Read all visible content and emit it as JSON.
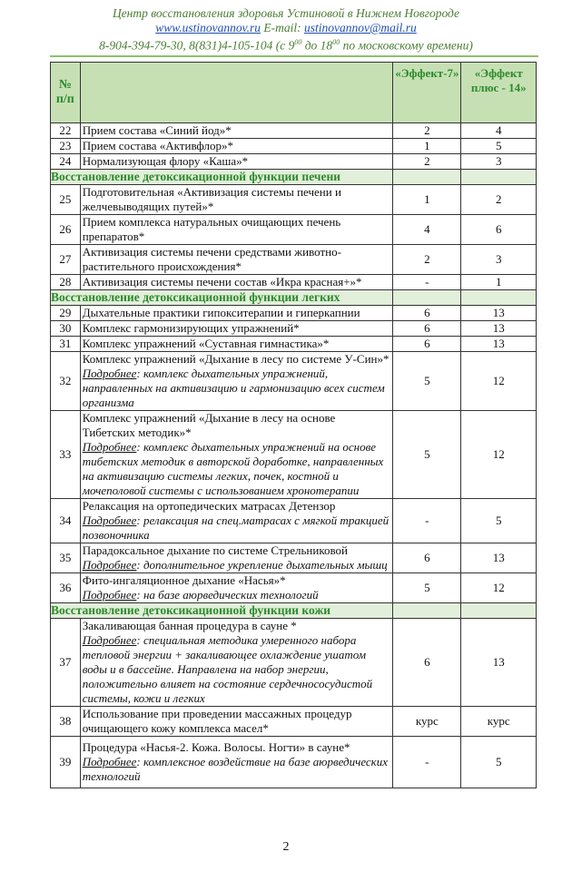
{
  "header": {
    "title": "Центр восстановления здоровья Устиновой в Нижнем Новгороде",
    "website": "www.ustinovannov.ru",
    "email_label": "E-mail:",
    "email": "ustinovannov@mail.ru",
    "phones": "8-904-394-79-30, 8(831)4-105-104 (с 9",
    "hours_from_sup": "00",
    "hours_mid": " до 18",
    "hours_to_sup": "00",
    "hours_end": " по московскому времени)"
  },
  "table": {
    "headers": {
      "num": "№ п/п",
      "desc": "",
      "effect7": "«Эффект-7»",
      "effect14": "«Эффект плюс - 14»"
    },
    "more_label": "Подробнее",
    "rows": [
      {
        "n": "22",
        "t": "Прием состава «Синий йод»*",
        "a": "2",
        "b": "4"
      },
      {
        "n": "23",
        "t": "Прием состава «Активфлор»*",
        "a": "1",
        "b": "5"
      },
      {
        "n": "24",
        "t": "Нормализующая флору «Каша»*",
        "a": "2",
        "b": "3"
      },
      {
        "section": "Восстановление детоксикационной функции печени"
      },
      {
        "n": "25",
        "t": "Подготовительная «Активизация системы печени и желчевыводящих путей»*",
        "a": "1",
        "b": "2"
      },
      {
        "n": "26",
        "t": "Прием комплекса натуральных очищающих  печень препаратов*",
        "a": "4",
        "b": "6"
      },
      {
        "n": "27",
        "t": "Активизация системы печени средствами животно-растительного происхождения*",
        "a": "2",
        "b": "3"
      },
      {
        "n": "28",
        "t": "Активизация системы печени состав «Икра красная+»*",
        "a": "-",
        "b": "1"
      },
      {
        "section": "Восстановление детоксикационной функции легких"
      },
      {
        "n": "29",
        "t": "Дыхательные практики гипокситерапии и гиперкапнии",
        "a": "6",
        "b": "13"
      },
      {
        "n": "30",
        "t": "Комплекс гармонизирующих упражнений*",
        "a": "6",
        "b": "13"
      },
      {
        "n": "31",
        "t": "Комплекс упражнений «Суставная гимнастика»*",
        "a": "6",
        "b": "13"
      },
      {
        "n": "32",
        "t": "Комплекс упражнений «Дыхание в лесу по системе У-Син»*",
        "m": ": комплекс дыхательных упражнений, направленных на активизацию и гармонизацию всех систем организма",
        "a": "5",
        "b": "12"
      },
      {
        "n": "33",
        "t": "Комплекс упражнений «Дыхание в лесу на основе Тибетских методик»*",
        "m": ": комплекс дыхательных упражнений на основе тибетских методик в авторской доработке, направленных на активизацию системы легких, почек, костной и мочеполовой системы с использованием хронотерапии",
        "a": "5",
        "b": "12"
      },
      {
        "n": "34",
        "t": "Релаксация на ортопедических матрасах Детензор",
        "m": ": релаксация на спец.матрасах с мягкой тракцией позвоночника",
        "a": "-",
        "b": "5"
      },
      {
        "n": "35",
        "t": "Парадоксальное дыхание по системе Стрельниковой",
        "m": ": дополнительное укрепление дыхательных мышц",
        "a": "6",
        "b": "13"
      },
      {
        "n": "36",
        "t": "Фито-ингаляционное дыхание «Насья»*",
        "m": ": на базе аюрведических технологий",
        "a": "5",
        "b": "12"
      },
      {
        "section": "Восстановление детоксикационной функции кожи"
      },
      {
        "n": "37",
        "t": "Закаливающая банная процедура в сауне *",
        "m": ": специальная методика умеренного набора тепловой энергии + закаливающее охлаждение ушатом воды и в бассейне. Направлена на набор энергии, положительно влияет на состояние сердечнососудистой системы, кожи и легких",
        "a": "6",
        "b": "13"
      },
      {
        "n": "38",
        "t": "Использование при проведении массажных процедур очищающего кожу комплекса масел*",
        "a": "курс",
        "b": "курс"
      },
      {
        "n": "39",
        "t": "Процедура «Насья-2. Кожа. Волосы. Ногти» в сауне*",
        "m": ": комплексное воздействие на базе аюрведических технологий",
        "a": "-",
        "b": "5",
        "tall": true
      }
    ]
  },
  "page_number": "2",
  "colors": {
    "accent_green": "#2d8a2d",
    "header_bg": "#c6e0b4",
    "section_bg": "#e2efda",
    "link": "#1f4fb0"
  }
}
